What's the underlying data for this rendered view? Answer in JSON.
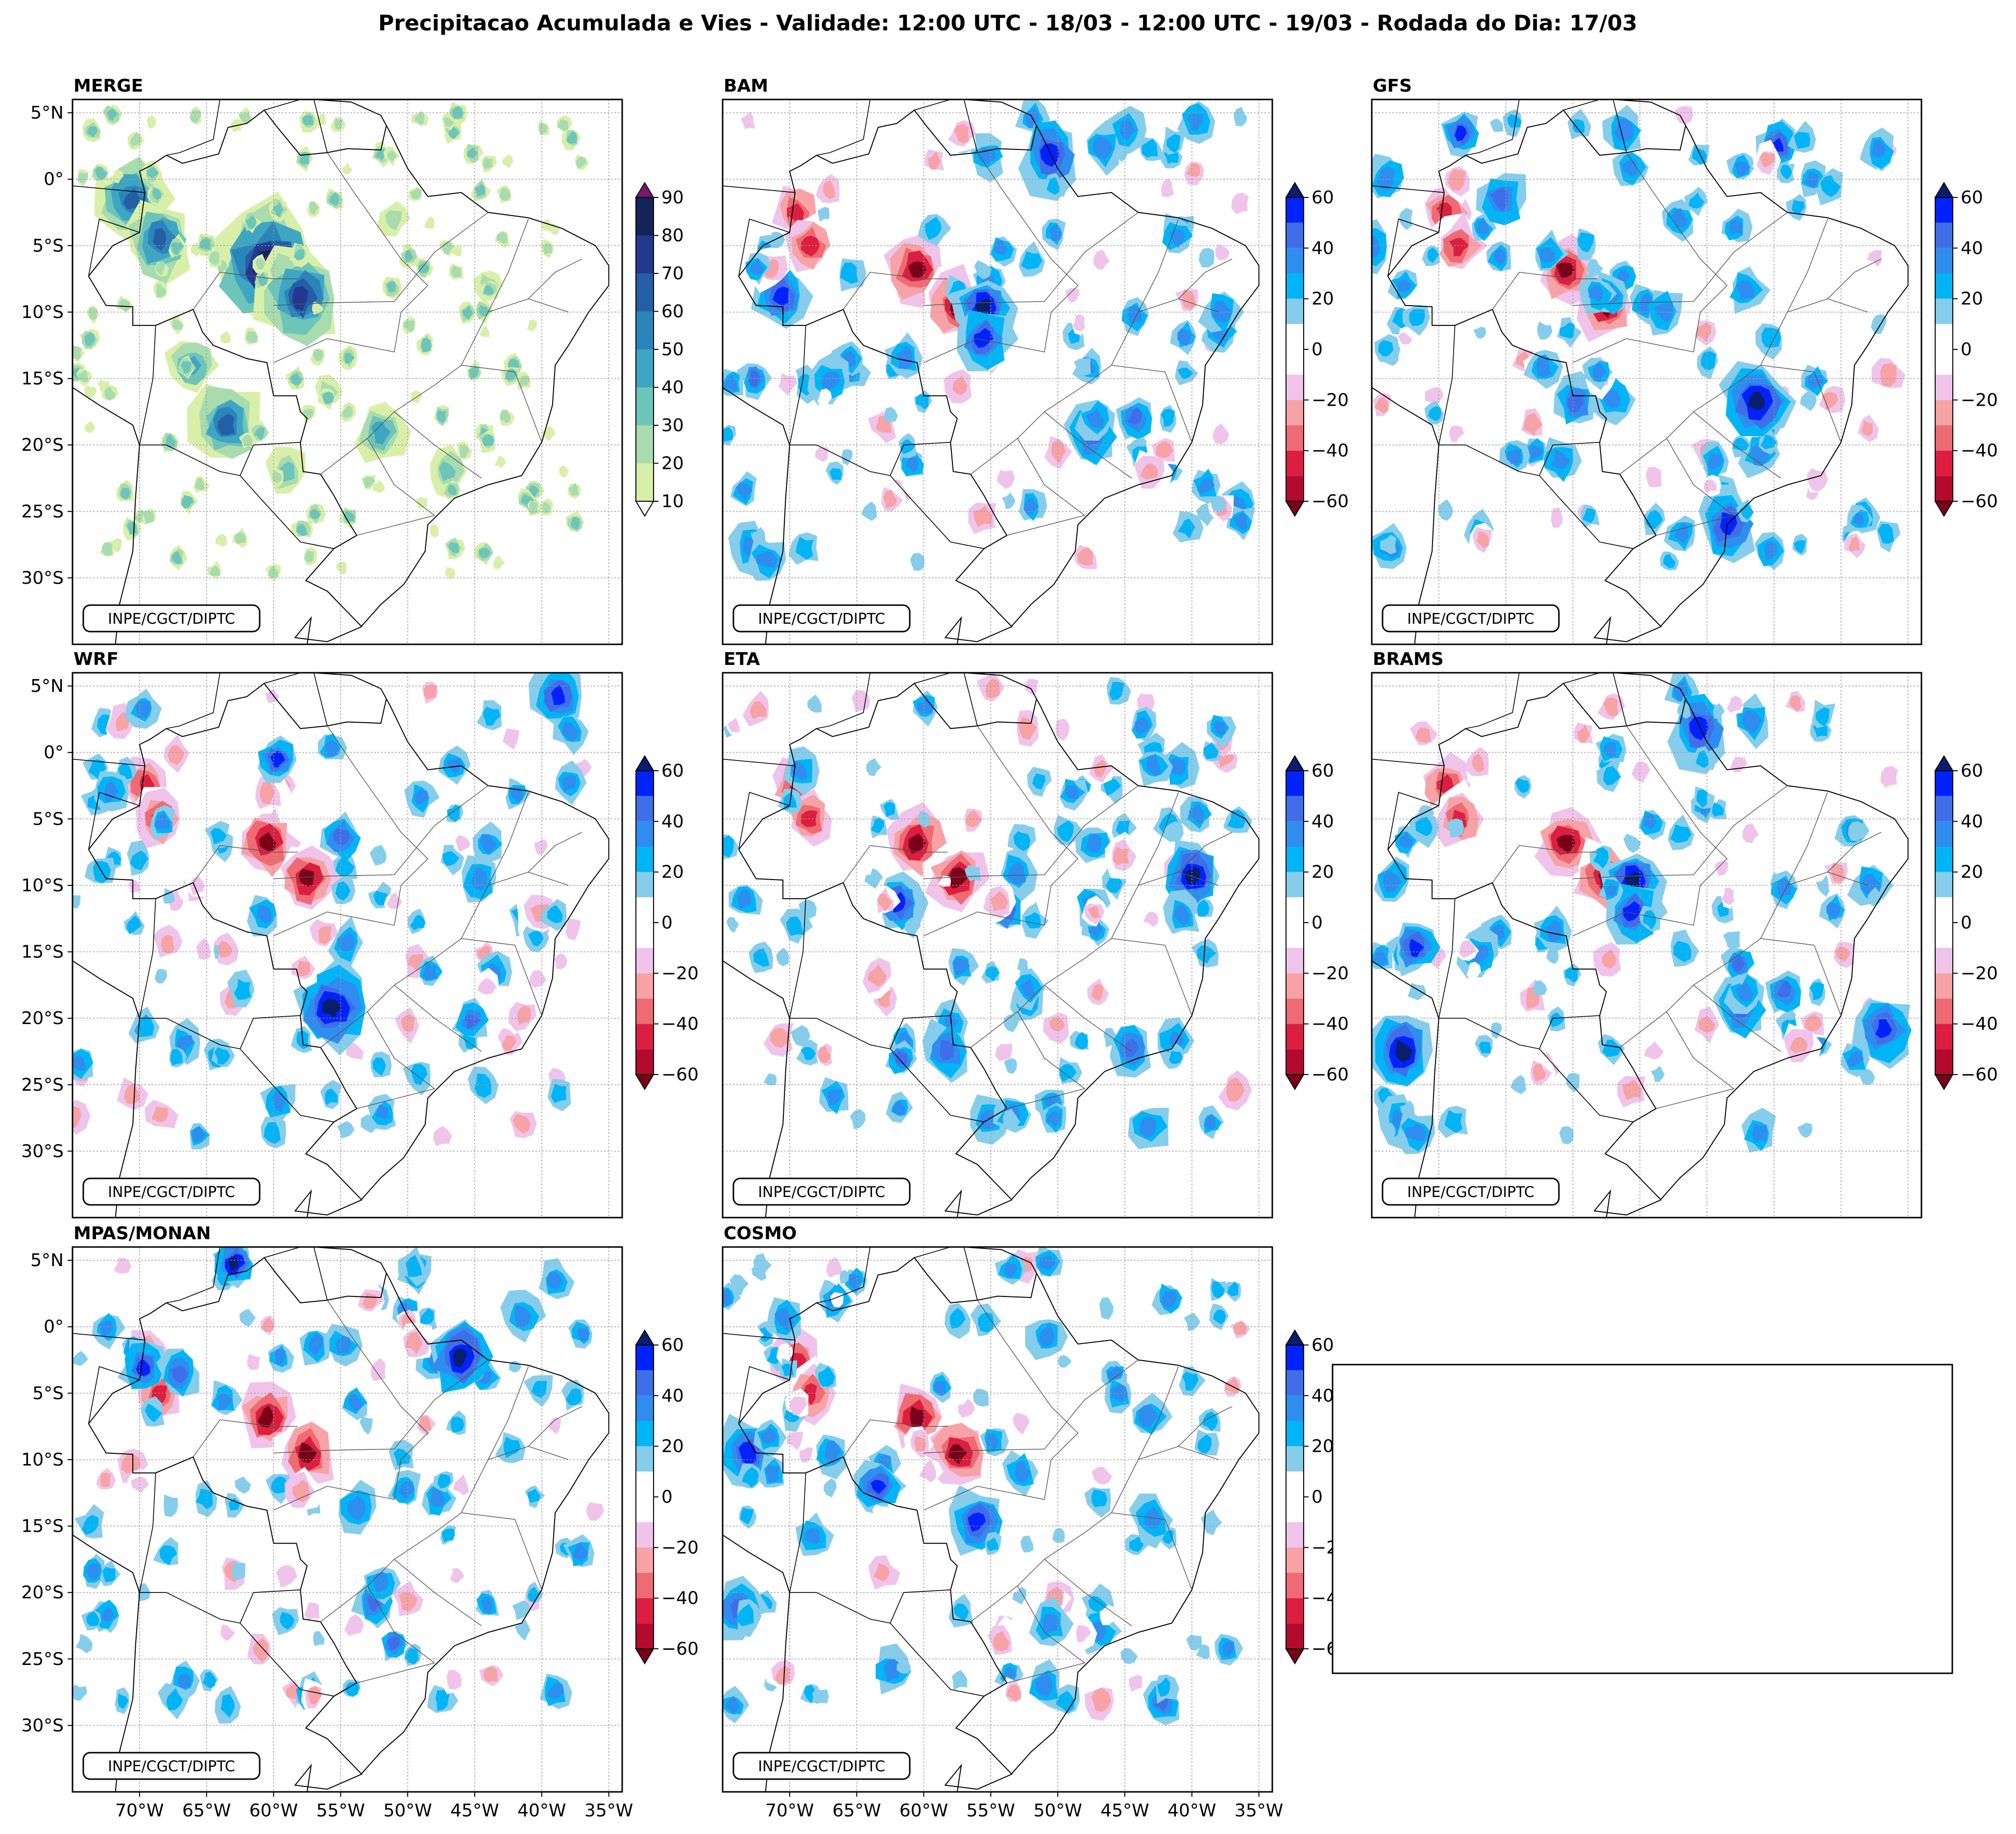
{
  "figure": {
    "title": "Precipitacao Acumulada e Vies - Validade: 12:00 UTC - 18/03 - 12:00 UTC - 19/03 - Rodada do Dia: 17/03",
    "credit": "INPE/CGCT/DIPTC"
  },
  "axes": {
    "lat_labels": [
      "5°N",
      "0°",
      "5°S",
      "10°S",
      "15°S",
      "20°S",
      "25°S",
      "30°S"
    ],
    "lat_values": [
      5,
      0,
      -5,
      -10,
      -15,
      -20,
      -25,
      -30
    ],
    "lon_labels": [
      "70°W",
      "65°W",
      "60°W",
      "55°W",
      "50°W",
      "45°W",
      "40°W",
      "35°W"
    ],
    "lon_values": [
      -70,
      -65,
      -60,
      -55,
      -50,
      -45,
      -40,
      -35
    ],
    "lon_range": [
      -75,
      -34
    ],
    "lat_range": [
      6,
      -35
    ]
  },
  "colorbars": {
    "precip": {
      "ticks": [
        "90",
        "80",
        "70",
        "60",
        "50",
        "40",
        "30",
        "20",
        "10"
      ],
      "colors": [
        "#f6fbc4",
        "#d8efa9",
        "#a8dbae",
        "#6cc5b8",
        "#3ea6c2",
        "#2b85ba",
        "#245fa5",
        "#23388f",
        "#142358",
        "#0b1a45"
      ],
      "over_color": "#7a1574",
      "under_color": "#ffffff"
    },
    "bias": {
      "ticks": [
        "60",
        "40",
        "20",
        "0",
        "−20",
        "−40",
        "−60"
      ],
      "colors": [
        "#0a1e6e",
        "#0022ff",
        "#3f6ee8",
        "#2f8df0",
        "#00b4f5",
        "#86cdec",
        "#ffffff",
        "#ffffff",
        "#f0c4ea",
        "#f7a3a6",
        "#ef6b74",
        "#dc1e40",
        "#b40a2e",
        "#8c0a1e"
      ],
      "over_color": "#0a1e6e",
      "under_color": "#7a0019"
    }
  },
  "panels": [
    {
      "id": "merge",
      "label": "MERGE",
      "kind": "precip"
    },
    {
      "id": "bam",
      "label": "BAM",
      "kind": "bias"
    },
    {
      "id": "gfs",
      "label": "GFS",
      "kind": "bias"
    },
    {
      "id": "wrf",
      "label": "WRF",
      "kind": "bias"
    },
    {
      "id": "eta",
      "label": "ETA",
      "kind": "bias"
    },
    {
      "id": "brams",
      "label": "BRAMS",
      "kind": "bias"
    },
    {
      "id": "mpas",
      "label": "MPAS/MONAN",
      "kind": "bias"
    },
    {
      "id": "cosmo",
      "label": "COSMO",
      "kind": "bias"
    }
  ],
  "features": {
    "merge_blobs": [
      {
        "lon": -70.5,
        "lat": -1.5,
        "v": 55
      },
      {
        "lon": -68.5,
        "lat": -4.5,
        "v": 60
      },
      {
        "lon": -60.5,
        "lat": -6.5,
        "v": 85
      },
      {
        "lon": -58.0,
        "lat": -9.0,
        "v": 70
      },
      {
        "lon": -63.5,
        "lat": -18.5,
        "v": 55
      },
      {
        "lon": -66.0,
        "lat": -14.0,
        "v": 40
      },
      {
        "lon": -52.0,
        "lat": -19.0,
        "v": 35
      },
      {
        "lon": -47.0,
        "lat": -22.0,
        "v": 30
      },
      {
        "lon": -51.0,
        "lat": -3.0,
        "v": 20
      },
      {
        "lon": -44.0,
        "lat": -8.0,
        "v": 18
      },
      {
        "lon": -56.0,
        "lat": -16.0,
        "v": 22
      },
      {
        "lon": -59.0,
        "lat": -22.0,
        "v": 25
      }
    ],
    "bias_common_dry": [
      {
        "lon": -69.5,
        "lat": -2.5,
        "v": -50
      },
      {
        "lon": -68.5,
        "lat": -5.0,
        "v": -45
      },
      {
        "lon": -60.5,
        "lat": -6.8,
        "v": -60
      },
      {
        "lon": -57.5,
        "lat": -9.5,
        "v": -55
      },
      {
        "lon": -63.0,
        "lat": -18.5,
        "v": -30
      },
      {
        "lon": -50.0,
        "lat": -20.5,
        "v": -25
      },
      {
        "lon": -54.0,
        "lat": -22.5,
        "v": -20
      }
    ]
  }
}
